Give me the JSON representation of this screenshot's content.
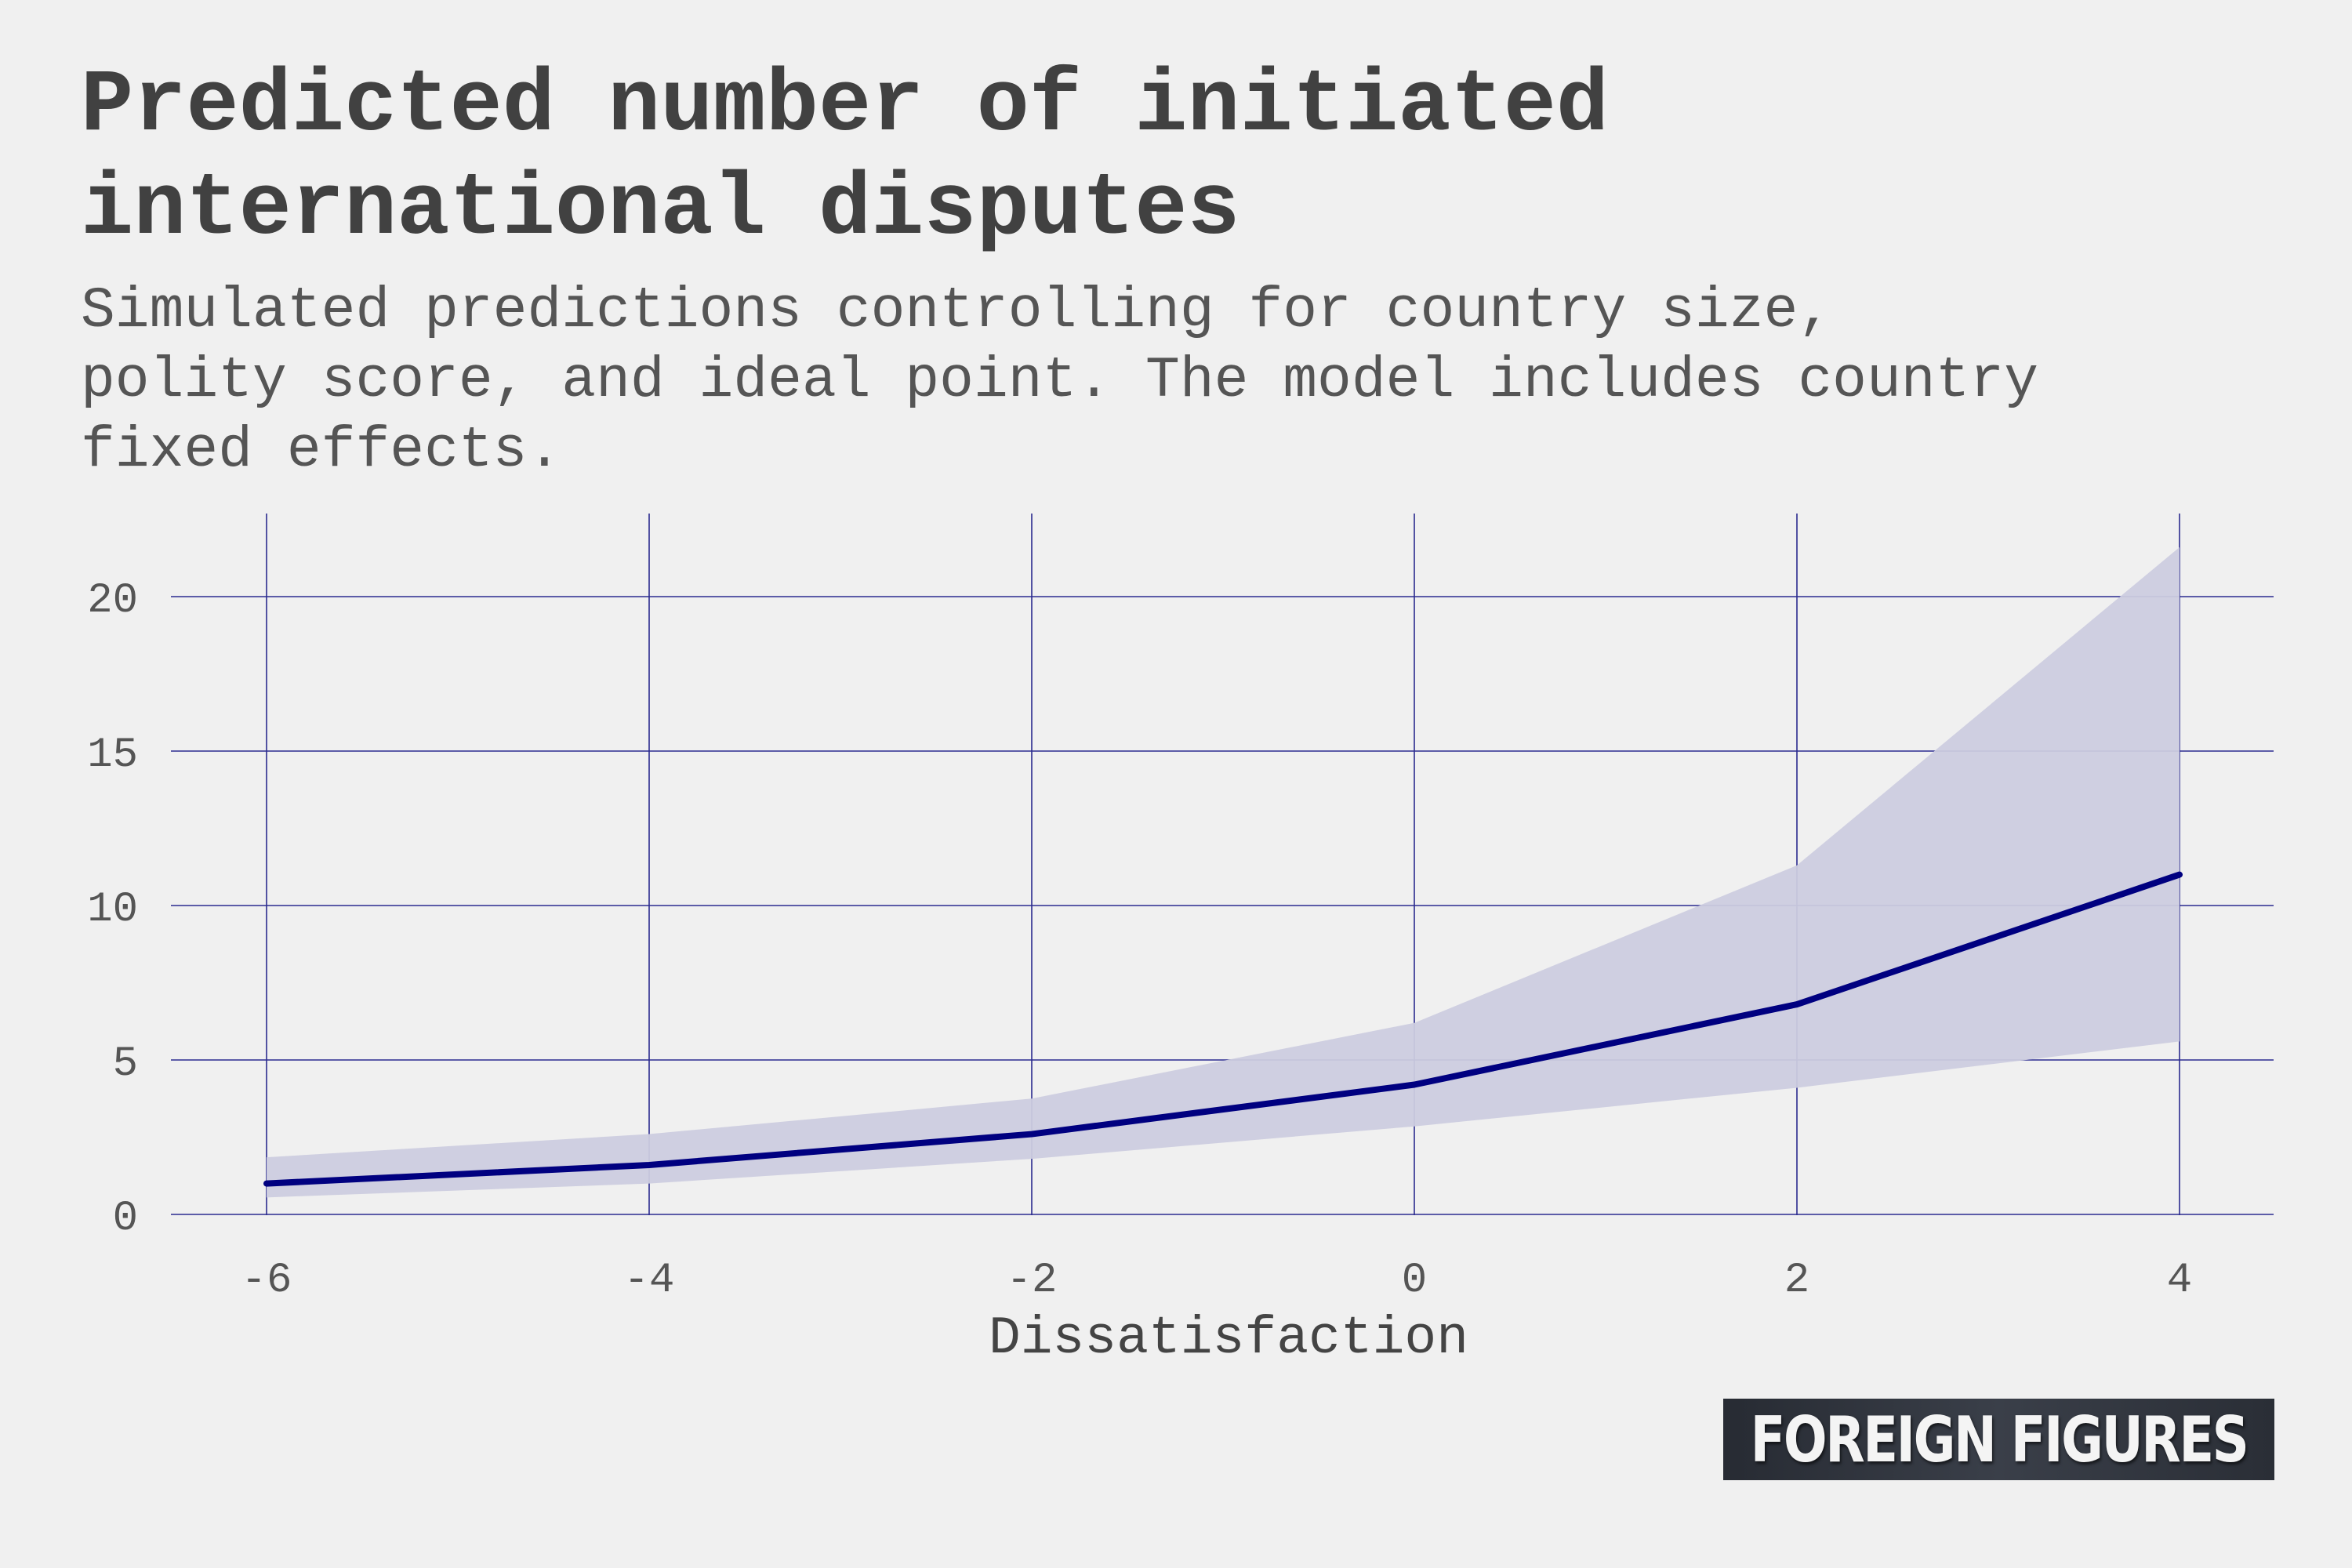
{
  "header": {
    "title": "Predicted number of initiated international disputes",
    "subtitle": "Simulated predictions controlling for country size, polity score, and ideal point. The model includes country fixed effects."
  },
  "logo": {
    "text": "FOREIGN FIGURES"
  },
  "colors": {
    "background": "#f0f0f0",
    "line": "#000080",
    "band": "#ccccdf",
    "grid": "#2b2b8f",
    "logo_bg": "#30343c"
  },
  "chart_data": {
    "type": "line",
    "xlabel": "Dissatisfaction",
    "ylabel": "",
    "xlim": [
      -6.5,
      4.5
    ],
    "ylim": [
      0,
      22
    ],
    "x_ticks": [
      -6,
      -4,
      -2,
      0,
      2,
      4
    ],
    "y_ticks": [
      0,
      5,
      10,
      15,
      20
    ],
    "grid": true,
    "series": [
      {
        "x": [
          -6,
          -4,
          -2,
          0,
          2,
          4
        ],
        "values": [
          1.0,
          1.6,
          2.6,
          4.2,
          6.8,
          11.0
        ],
        "lower": [
          0.55,
          1.0,
          1.8,
          2.85,
          4.1,
          5.6
        ],
        "upper": [
          1.85,
          2.6,
          3.75,
          6.2,
          11.3,
          21.6
        ]
      }
    ]
  }
}
